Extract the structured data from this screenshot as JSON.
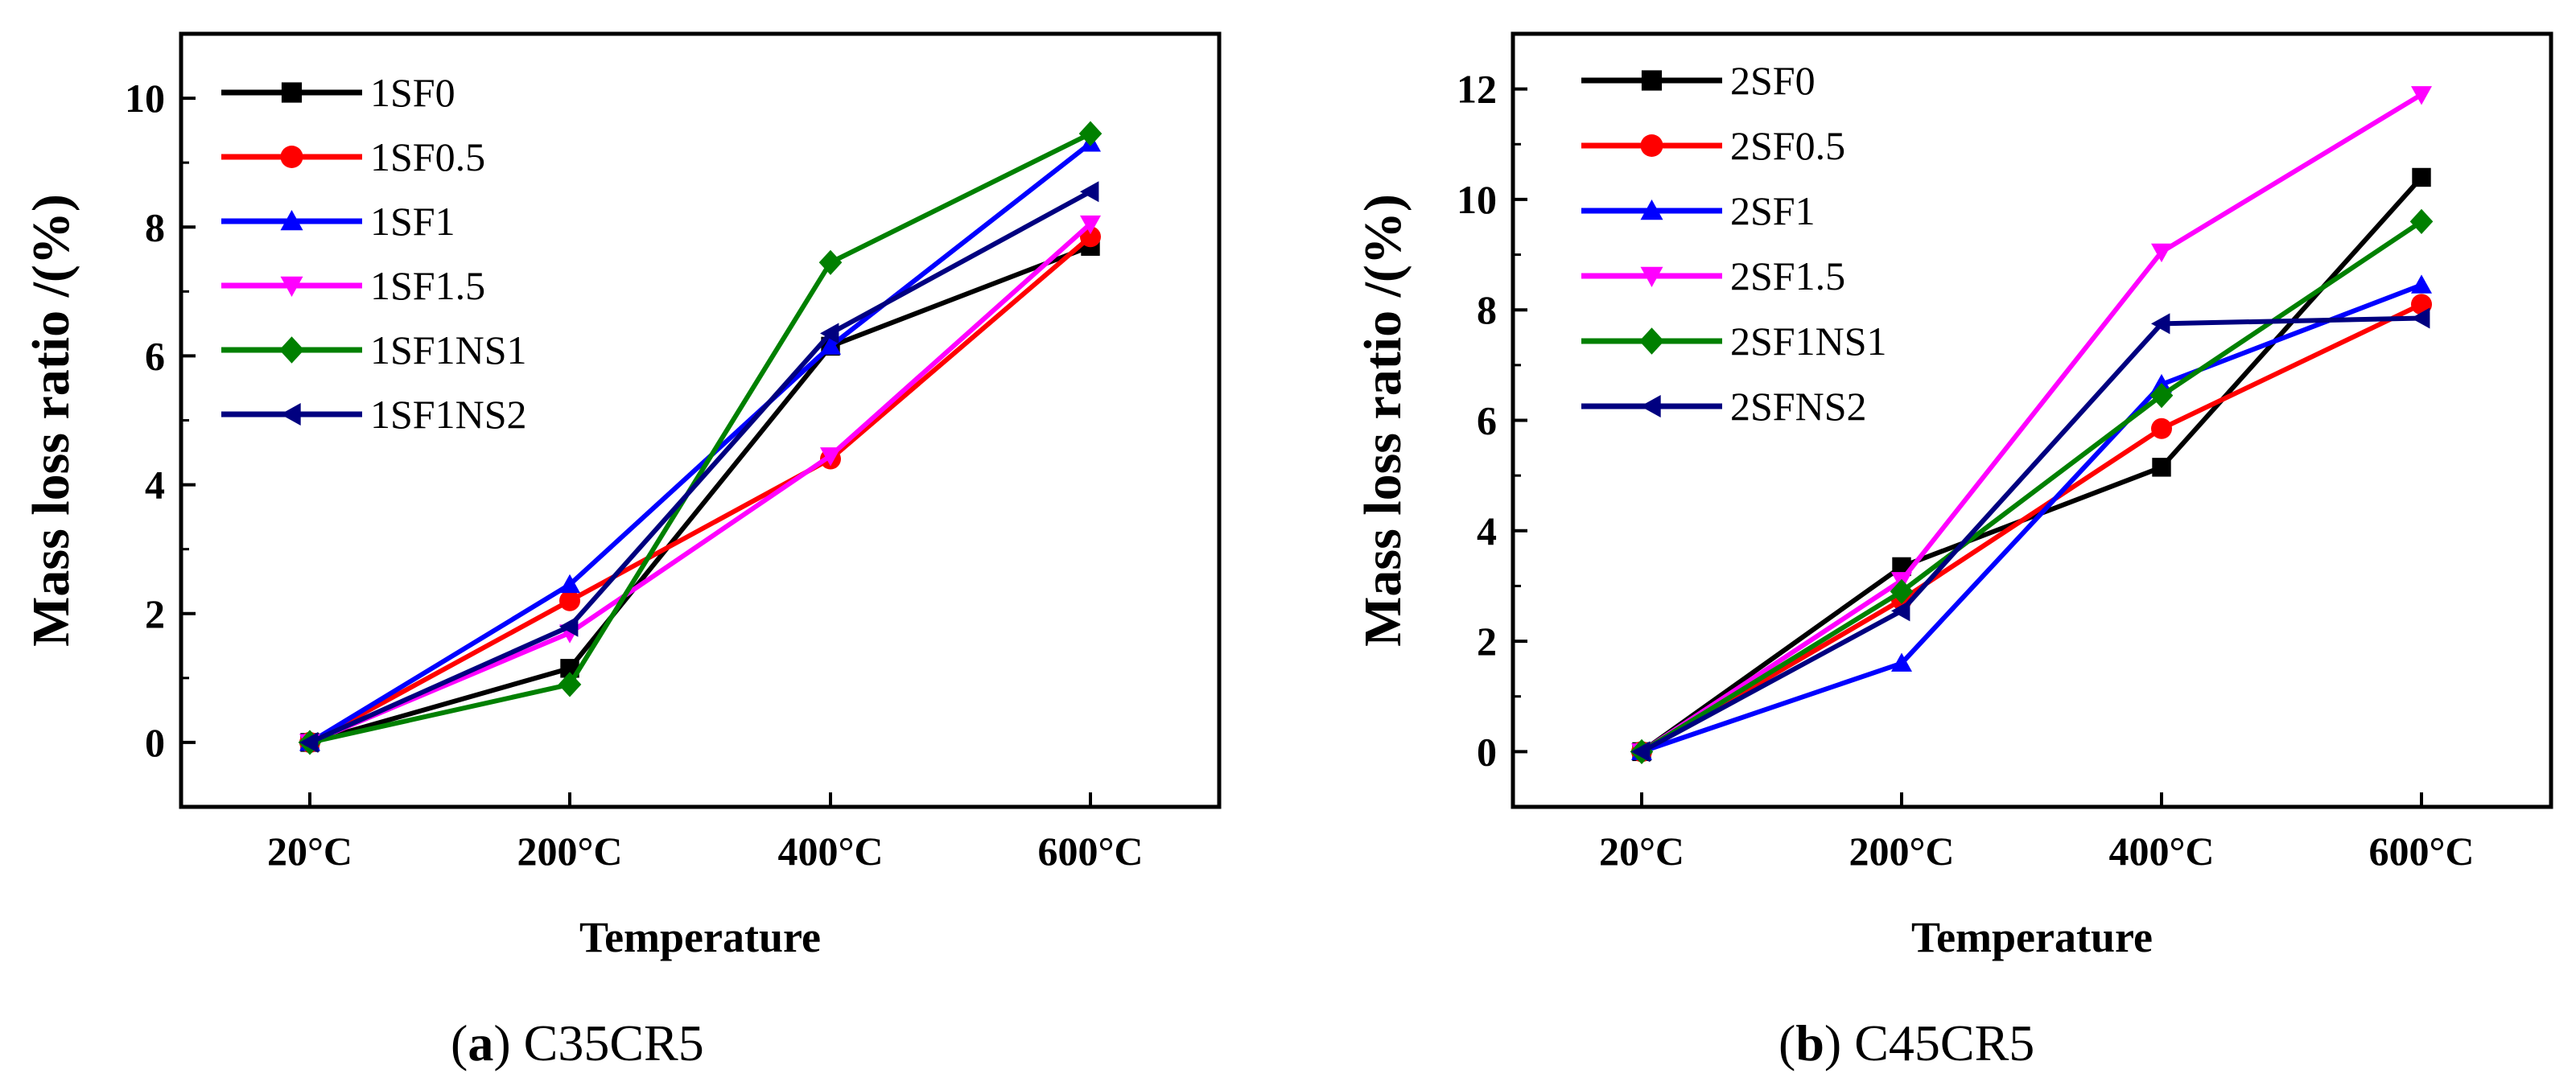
{
  "chart_data": [
    {
      "type": "line",
      "id": "a",
      "caption_label": "a",
      "caption_title": "C35CR5",
      "xlabel": "Temperature",
      "ylabel": "Mass loss ratio /(%)",
      "categories": [
        "20°C",
        "200°C",
        "400°C",
        "600°C"
      ],
      "ylim": [
        -1,
        11
      ],
      "yticks": [
        0,
        2,
        4,
        6,
        8,
        10
      ],
      "series": [
        {
          "name": "1SF0",
          "values": [
            0,
            1.15,
            6.15,
            7.7
          ],
          "color": "#000000",
          "marker": "square"
        },
        {
          "name": "1SF0.5",
          "values": [
            0,
            2.2,
            4.4,
            7.85
          ],
          "color": "#ff0000",
          "marker": "circle"
        },
        {
          "name": "1SF1",
          "values": [
            0,
            2.45,
            6.15,
            9.3
          ],
          "color": "#0000ff",
          "marker": "triangle-up"
        },
        {
          "name": "1SF1.5",
          "values": [
            0,
            1.7,
            4.45,
            8.05
          ],
          "color": "#ff00ff",
          "marker": "triangle-down"
        },
        {
          "name": "1SF1NS1",
          "values": [
            0,
            0.9,
            7.45,
            9.45
          ],
          "color": "#008000",
          "marker": "diamond"
        },
        {
          "name": "1SF1NS2",
          "values": [
            0,
            1.8,
            6.35,
            8.55
          ],
          "color": "#000080",
          "marker": "triangle-left"
        }
      ]
    },
    {
      "type": "line",
      "id": "b",
      "caption_label": "b",
      "caption_title": "C45CR5",
      "xlabel": "Temperature",
      "ylabel": "Mass loss ratio /(%)",
      "categories": [
        "20°C",
        "200°C",
        "400°C",
        "600°C"
      ],
      "ylim": [
        -1,
        13
      ],
      "yticks": [
        0,
        2,
        4,
        6,
        8,
        10,
        12
      ],
      "series": [
        {
          "name": "2SF0",
          "values": [
            0,
            3.35,
            5.15,
            10.4
          ],
          "color": "#000000",
          "marker": "square"
        },
        {
          "name": "2SF0.5",
          "values": [
            0,
            2.75,
            5.85,
            8.1
          ],
          "color": "#ff0000",
          "marker": "circle"
        },
        {
          "name": "2SF1",
          "values": [
            0,
            1.6,
            6.65,
            8.45
          ],
          "color": "#0000ff",
          "marker": "triangle-up"
        },
        {
          "name": "2SF1.5",
          "values": [
            0,
            3.1,
            9.05,
            11.9
          ],
          "color": "#ff00ff",
          "marker": "triangle-down"
        },
        {
          "name": "2SF1NS1",
          "values": [
            0,
            2.9,
            6.45,
            9.6
          ],
          "color": "#008000",
          "marker": "diamond"
        },
        {
          "name": "2SFNS2",
          "values": [
            0,
            2.55,
            7.75,
            7.85
          ],
          "color": "#000080",
          "marker": "triangle-left"
        }
      ]
    }
  ]
}
